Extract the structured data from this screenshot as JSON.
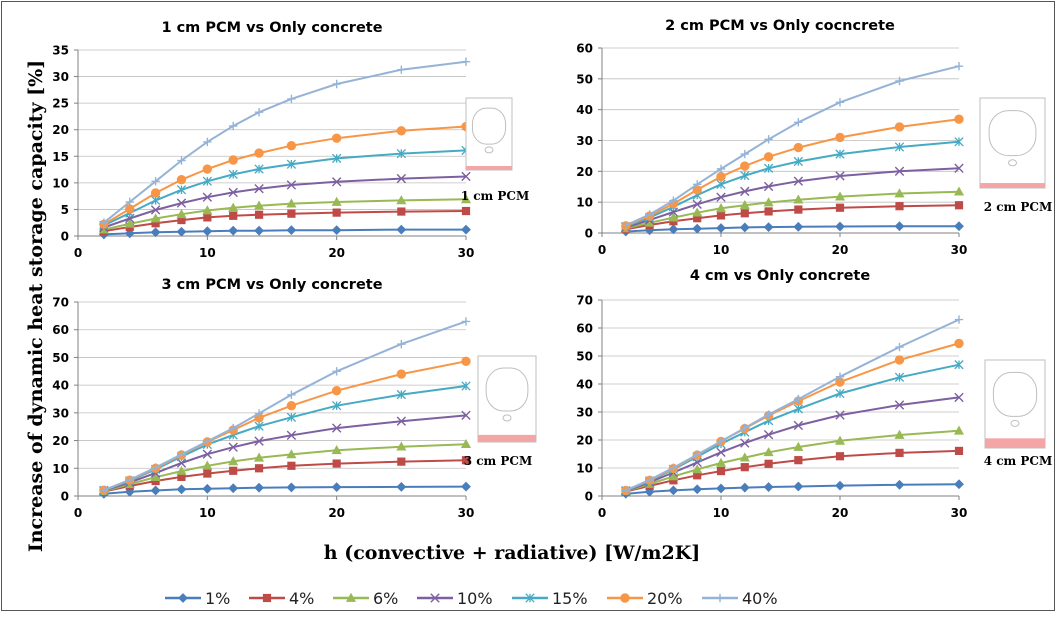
{
  "figure": {
    "ylabel": "Increase of dynamic heat storage capacity [%]",
    "xlabel": "h (convective + radiative) [W/m2K]"
  },
  "legend": [
    {
      "name": "1%",
      "color": "#4a7ebb",
      "marker": "diamond"
    },
    {
      "name": "4%",
      "color": "#be4b48",
      "marker": "square"
    },
    {
      "name": "6%",
      "color": "#98b954",
      "marker": "triangle"
    },
    {
      "name": "10%",
      "color": "#7d60a0",
      "marker": "x"
    },
    {
      "name": "15%",
      "color": "#46aac4",
      "marker": "star"
    },
    {
      "name": "20%",
      "color": "#f79646",
      "marker": "circle"
    },
    {
      "name": "40%",
      "color": "#95b3d7",
      "marker": "plus"
    }
  ],
  "chart_data": [
    {
      "type": "line",
      "title": "1 cm PCM vs Only concrete",
      "inset_label": "1 cm PCM",
      "pcm_fraction": 0.05,
      "x": [
        2,
        4,
        6,
        8,
        10,
        12,
        14,
        16.5,
        20,
        25,
        30
      ],
      "xlim": [
        0,
        30
      ],
      "xticks": [
        0,
        10,
        20,
        30
      ],
      "ylim": [
        0,
        35
      ],
      "yticks": [
        0,
        5,
        10,
        15,
        20,
        25,
        30,
        35
      ],
      "series": [
        {
          "name": "1%",
          "values": [
            0.3,
            0.5,
            0.7,
            0.8,
            0.9,
            1.0,
            1.0,
            1.1,
            1.1,
            1.2,
            1.2
          ]
        },
        {
          "name": "4%",
          "values": [
            0.9,
            1.7,
            2.4,
            3.0,
            3.5,
            3.8,
            4.0,
            4.2,
            4.4,
            4.6,
            4.7
          ]
        },
        {
          "name": "6%",
          "values": [
            1.2,
            2.3,
            3.3,
            4.1,
            4.8,
            5.3,
            5.7,
            6.1,
            6.4,
            6.7,
            6.9
          ]
        },
        {
          "name": "10%",
          "values": [
            1.6,
            3.3,
            4.9,
            6.2,
            7.3,
            8.2,
            8.9,
            9.6,
            10.2,
            10.8,
            11.2
          ]
        },
        {
          "name": "15%",
          "values": [
            2.0,
            4.3,
            6.7,
            8.7,
            10.3,
            11.6,
            12.6,
            13.5,
            14.6,
            15.5,
            16.1
          ]
        },
        {
          "name": "20%",
          "values": [
            2.2,
            5.1,
            8.1,
            10.6,
            12.6,
            14.3,
            15.6,
            17.0,
            18.4,
            19.8,
            20.6
          ]
        },
        {
          "name": "40%",
          "values": [
            2.5,
            6.4,
            10.3,
            14.2,
            17.7,
            20.7,
            23.3,
            25.8,
            28.6,
            31.3,
            32.8
          ]
        }
      ]
    },
    {
      "type": "line",
      "title": "2 cm PCM vs Only cocncrete",
      "inset_label": "2 cm PCM",
      "pcm_fraction": 0.1,
      "x": [
        2,
        4,
        6,
        8,
        10,
        12,
        14,
        16.5,
        20,
        25,
        30
      ],
      "xlim": [
        0,
        30
      ],
      "xticks": [
        0,
        10,
        20,
        30
      ],
      "ylim": [
        0,
        60
      ],
      "yticks": [
        0,
        10,
        20,
        30,
        40,
        50,
        60
      ],
      "series": [
        {
          "name": "1%",
          "values": [
            0.5,
            0.9,
            1.2,
            1.4,
            1.6,
            1.8,
            1.9,
            2.0,
            2.1,
            2.2,
            2.2
          ]
        },
        {
          "name": "4%",
          "values": [
            1.2,
            2.6,
            3.8,
            4.8,
            5.7,
            6.4,
            7.0,
            7.6,
            8.2,
            8.7,
            9.0
          ]
        },
        {
          "name": "6%",
          "values": [
            1.5,
            3.3,
            5.0,
            6.6,
            8.0,
            9.0,
            9.9,
            10.8,
            11.8,
            12.8,
            13.4
          ]
        },
        {
          "name": "10%",
          "values": [
            1.8,
            4.2,
            6.8,
            9.3,
            11.6,
            13.5,
            15.1,
            16.8,
            18.5,
            20.0,
            21.0
          ]
        },
        {
          "name": "15%",
          "values": [
            2.1,
            5.0,
            8.5,
            12.3,
            15.8,
            18.6,
            21.0,
            23.2,
            25.6,
            27.9,
            29.6
          ]
        },
        {
          "name": "20%",
          "values": [
            2.3,
            5.5,
            9.5,
            14.0,
            18.3,
            21.7,
            24.7,
            27.7,
            31.0,
            34.4,
            36.9
          ]
        },
        {
          "name": "40%",
          "values": [
            2.5,
            6.0,
            10.5,
            15.8,
            20.8,
            25.6,
            30.4,
            35.9,
            42.4,
            49.3,
            54.1
          ]
        }
      ]
    },
    {
      "type": "line",
      "title": "3 cm PCM vs Only concrete",
      "inset_label": "3 cm PCM",
      "pcm_fraction": 0.15,
      "x": [
        2,
        4,
        6,
        8,
        10,
        12,
        14,
        16.5,
        20,
        25,
        30
      ],
      "xlim": [
        0,
        30
      ],
      "xticks": [
        0,
        10,
        20,
        30
      ],
      "ylim": [
        0,
        70
      ],
      "yticks": [
        0,
        10,
        20,
        30,
        40,
        50,
        60,
        70
      ],
      "series": [
        {
          "name": "1%",
          "values": [
            0.8,
            1.5,
            2.0,
            2.4,
            2.6,
            2.8,
            3.0,
            3.1,
            3.2,
            3.3,
            3.4
          ]
        },
        {
          "name": "4%",
          "values": [
            1.6,
            3.6,
            5.4,
            6.9,
            8.1,
            9.1,
            10.0,
            10.9,
            11.7,
            12.4,
            12.9
          ]
        },
        {
          "name": "6%",
          "values": [
            1.7,
            4.3,
            6.8,
            9.0,
            10.9,
            12.5,
            13.8,
            15.0,
            16.5,
            17.8,
            18.7
          ]
        },
        {
          "name": "10%",
          "values": [
            1.9,
            4.9,
            8.3,
            11.9,
            15.1,
            17.6,
            19.8,
            21.9,
            24.5,
            27.0,
            29.1
          ]
        },
        {
          "name": "15%",
          "values": [
            2.0,
            5.5,
            9.6,
            14.2,
            18.6,
            22.0,
            25.2,
            28.4,
            32.6,
            36.6,
            39.7
          ]
        },
        {
          "name": "20%",
          "values": [
            2.1,
            5.7,
            10.0,
            14.8,
            19.5,
            23.8,
            28.2,
            32.6,
            38.0,
            44.0,
            48.6
          ]
        },
        {
          "name": "40%",
          "values": [
            2.1,
            5.8,
            10.3,
            15.0,
            19.7,
            24.5,
            29.8,
            36.5,
            45.0,
            54.8,
            63.0
          ]
        }
      ]
    },
    {
      "type": "line",
      "title": "4 cm vs Only concrete",
      "inset_label": "4 cm PCM",
      "pcm_fraction": 0.2,
      "x": [
        2,
        4,
        6,
        8,
        10,
        12,
        14,
        16.5,
        20,
        25,
        30
      ],
      "xlim": [
        0,
        30
      ],
      "xticks": [
        0,
        10,
        20,
        30
      ],
      "ylim": [
        0,
        70
      ],
      "yticks": [
        0,
        10,
        20,
        30,
        40,
        50,
        60,
        70
      ],
      "series": [
        {
          "name": "1%",
          "values": [
            0.8,
            1.5,
            2.0,
            2.4,
            2.7,
            3.0,
            3.2,
            3.4,
            3.7,
            4.0,
            4.2
          ]
        },
        {
          "name": "4%",
          "values": [
            1.6,
            3.6,
            5.6,
            7.4,
            8.9,
            10.3,
            11.5,
            12.8,
            14.2,
            15.4,
            16.1
          ]
        },
        {
          "name": "6%",
          "values": [
            1.7,
            4.3,
            7.0,
            9.5,
            11.8,
            13.7,
            15.6,
            17.5,
            19.7,
            21.8,
            23.3
          ]
        },
        {
          "name": "10%",
          "values": [
            1.8,
            4.9,
            8.4,
            12.0,
            15.6,
            18.9,
            21.9,
            25.2,
            28.9,
            32.5,
            35.2
          ]
        },
        {
          "name": "15%",
          "values": [
            1.9,
            5.4,
            9.5,
            14.0,
            18.6,
            22.8,
            26.9,
            31.1,
            36.6,
            42.4,
            46.9
          ]
        },
        {
          "name": "20%",
          "values": [
            2.0,
            5.6,
            9.8,
            14.6,
            19.5,
            24.1,
            28.7,
            33.9,
            40.7,
            48.6,
            54.5
          ]
        },
        {
          "name": "40%",
          "values": [
            2.0,
            5.7,
            10.1,
            14.8,
            19.5,
            24.3,
            29.1,
            34.6,
            42.6,
            53.2,
            63.0
          ]
        }
      ]
    }
  ]
}
